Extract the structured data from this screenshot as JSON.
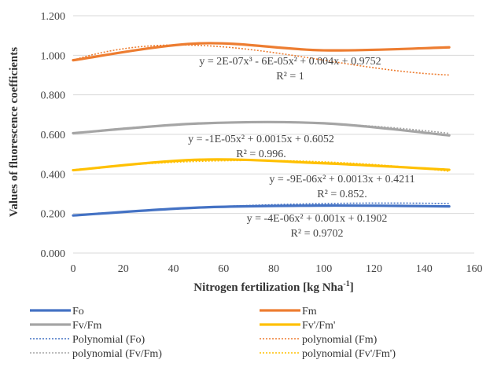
{
  "chart_data": {
    "type": "line",
    "xlabel": "Nitrogen fertilization [kg Nha",
    "xlabel_sup": "-1",
    "xlabel_end": "]",
    "ylabel": "Values of fluorescence coefficients",
    "xlim": [
      0,
      160
    ],
    "ylim": [
      0,
      1.2
    ],
    "x_ticks": [
      "0",
      "20",
      "40",
      "60",
      "80",
      "100",
      "120",
      "140",
      "160"
    ],
    "y_ticks": [
      "0.000",
      "0.200",
      "0.400",
      "0.600",
      "0.800",
      "1.000",
      "1.200"
    ],
    "grid": true,
    "legend_position": "bottom",
    "x": [
      0,
      50,
      100,
      150
    ],
    "series": [
      {
        "name": "Fo",
        "color": "#4472C4",
        "style": "solid",
        "values": [
          0.19,
          0.23,
          0.24,
          0.236
        ]
      },
      {
        "name": "Fm",
        "color": "#ED7D31",
        "style": "solid",
        "values": [
          0.975,
          1.06,
          1.025,
          1.04
        ]
      },
      {
        "name": "Fv/Fm",
        "color": "#A5A5A5",
        "style": "solid",
        "values": [
          0.606,
          0.655,
          0.656,
          0.595
        ]
      },
      {
        "name": "Fv'/Fm'",
        "color": "#FFC000",
        "style": "solid",
        "values": [
          0.419,
          0.472,
          0.454,
          0.421
        ]
      }
    ],
    "trendlines": [
      {
        "name": "Polynomial (Fo)",
        "color": "#4472C4",
        "coef": [
          0,
          -4e-06,
          0.001,
          0.1902
        ]
      },
      {
        "name": "polynomial (Fm)",
        "color": "#ED7D31",
        "coef": [
          2e-07,
          -6e-05,
          0.004,
          0.9752
        ]
      },
      {
        "name": "polynomial (Fv/Fm)",
        "color": "#A5A5A5",
        "coef": [
          0,
          -1e-05,
          0.0015,
          0.6052
        ]
      },
      {
        "name": "polynomial (Fv'/Fm')",
        "color": "#FFC000",
        "coef": [
          0,
          -9e-06,
          0.0013,
          0.4211
        ]
      }
    ],
    "annotations": [
      {
        "equation": "y = 2E-07x³ - 6E-05x² + 0.004x + 0.9752",
        "r2": "R² = 1"
      },
      {
        "equation": "y = -1E-05x² + 0.0015x + 0.6052",
        "r2": "R² = 0.996."
      },
      {
        "equation": "y = -9E-06x² + 0.0013x + 0.4211",
        "r2": "R² = 0.852."
      },
      {
        "equation": "y = -4E-06x² + 0.001x + 0.1902",
        "r2": "R² = 0.9702"
      }
    ]
  }
}
